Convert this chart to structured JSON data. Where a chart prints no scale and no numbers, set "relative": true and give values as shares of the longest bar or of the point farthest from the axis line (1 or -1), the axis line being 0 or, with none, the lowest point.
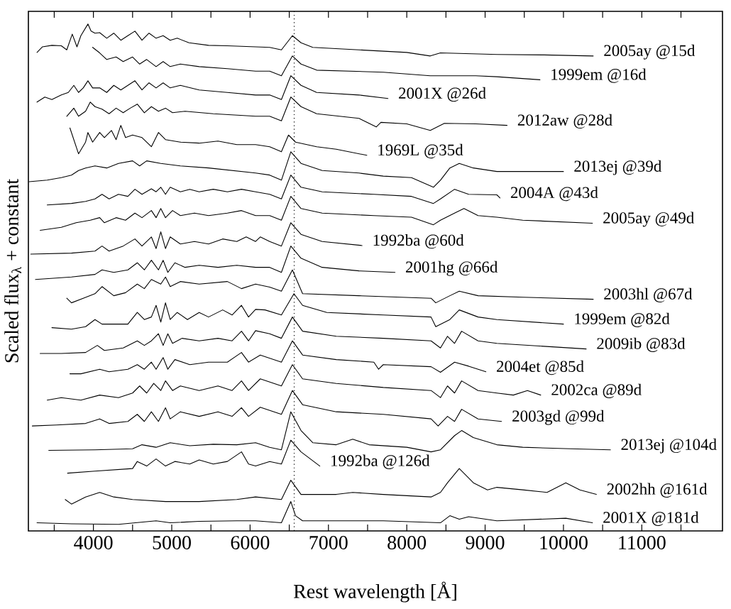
{
  "chart_data": {
    "type": "line",
    "relative": true,
    "xlabel": "Rest wavelength [Å]",
    "ylabel": "Scaled flux$_{λ}$ + constant",
    "xlim": [
      3170,
      12030
    ],
    "xticks": [
      {
        "value": 3500,
        "label": null
      },
      4000,
      {
        "value": 4500,
        "label": null
      },
      5000,
      {
        "value": 5500,
        "label": null
      },
      6000,
      {
        "value": 6500,
        "label": null
      },
      7000,
      {
        "value": 7500,
        "label": null
      },
      8000,
      {
        "value": 8500,
        "label": null
      },
      9000,
      {
        "value": 9500,
        "label": null
      },
      10000,
      {
        "value": 10500,
        "label": null
      },
      11000,
      {
        "value": 11500,
        "label": null
      }
    ],
    "ref_lines": [
      {
        "axis": "x",
        "value": 6563,
        "line_style": "dotted"
      }
    ],
    "series": [
      {
        "name": "2005ay @15d",
        "color": "#000000",
        "x": [
          3280,
          3350,
          3470,
          3590,
          3660,
          3730,
          3790,
          3840,
          3930,
          3970,
          4020,
          4080,
          4170,
          4260,
          4350,
          4440,
          4530,
          4620,
          4710,
          4800,
          4890,
          4980,
          5070,
          5220,
          5470,
          5710,
          6070,
          6250,
          6400,
          6540,
          6650,
          6800,
          7390,
          8000,
          8300,
          8430,
          9150,
          9750,
          10380
        ],
        "values": [
          0.944,
          0.955,
          0.958,
          0.957,
          0.949,
          0.98,
          0.955,
          0.977,
          1.0,
          0.986,
          0.982,
          0.983,
          0.972,
          0.982,
          0.968,
          0.977,
          0.986,
          0.968,
          0.982,
          0.972,
          0.977,
          0.968,
          0.972,
          0.963,
          0.958,
          0.957,
          0.955,
          0.954,
          0.949,
          0.977,
          0.963,
          0.954,
          0.949,
          0.944,
          0.937,
          0.943,
          0.94,
          0.939,
          0.937
        ]
      },
      {
        "name": "1999em @16d",
        "color": "#000000",
        "x": [
          3990,
          4080,
          4170,
          4290,
          4380,
          4500,
          4590,
          4680,
          4800,
          4890,
          4980,
          5110,
          5350,
          5710,
          6070,
          6250,
          6400,
          6540,
          6650,
          6850,
          7700,
          8300,
          8880,
          9150,
          9700
        ],
        "values": [
          0.954,
          0.943,
          0.93,
          0.935,
          0.926,
          0.935,
          0.921,
          0.93,
          0.916,
          0.926,
          0.916,
          0.921,
          0.916,
          0.912,
          0.907,
          0.907,
          0.898,
          0.937,
          0.921,
          0.909,
          0.905,
          0.898,
          0.898,
          0.896,
          0.89
        ]
      },
      {
        "name": "2001X @26d",
        "color": "#000000",
        "x": [
          3280,
          3380,
          3470,
          3590,
          3680,
          3750,
          3810,
          3870,
          3930,
          3990,
          4080,
          4170,
          4260,
          4350,
          4440,
          4530,
          4620,
          4710,
          4800,
          4890,
          4980,
          5110,
          5350,
          5710,
          6070,
          6250,
          6400,
          6520,
          6650,
          6850,
          7390,
          7760
        ],
        "values": [
          0.846,
          0.856,
          0.851,
          0.86,
          0.865,
          0.879,
          0.865,
          0.874,
          0.888,
          0.874,
          0.874,
          0.865,
          0.879,
          0.87,
          0.879,
          0.888,
          0.87,
          0.884,
          0.874,
          0.884,
          0.874,
          0.879,
          0.87,
          0.865,
          0.86,
          0.86,
          0.851,
          0.898,
          0.879,
          0.865,
          0.86,
          0.853
        ]
      },
      {
        "name": "2012aw @28d",
        "color": "#000000",
        "x": [
          3660,
          3750,
          3810,
          3900,
          3960,
          4020,
          4110,
          4200,
          4290,
          4380,
          4470,
          4560,
          4650,
          4740,
          4830,
          4920,
          5010,
          5170,
          5530,
          6070,
          6250,
          6400,
          6520,
          6650,
          6850,
          7390,
          7610,
          7670,
          8000,
          8300,
          8480,
          8880,
          9280
        ],
        "values": [
          0.818,
          0.834,
          0.818,
          0.828,
          0.846,
          0.837,
          0.832,
          0.823,
          0.834,
          0.825,
          0.834,
          0.842,
          0.825,
          0.837,
          0.828,
          0.834,
          0.825,
          0.828,
          0.823,
          0.818,
          0.818,
          0.809,
          0.856,
          0.837,
          0.823,
          0.814,
          0.797,
          0.806,
          0.803,
          0.79,
          0.804,
          0.803,
          0.8
        ]
      },
      {
        "name": "1969L @35d",
        "color": "#000000",
        "x": [
          3700,
          3810,
          3900,
          3930,
          3990,
          4080,
          4140,
          4230,
          4290,
          4350,
          4410,
          4500,
          4620,
          4740,
          4830,
          4920,
          5110,
          5350,
          5590,
          5830,
          6070,
          6250,
          6400,
          6490,
          6580,
          6850,
          7100,
          7490
        ],
        "values": [
          0.795,
          0.744,
          0.767,
          0.786,
          0.767,
          0.786,
          0.776,
          0.79,
          0.772,
          0.8,
          0.776,
          0.781,
          0.776,
          0.758,
          0.786,
          0.772,
          0.767,
          0.765,
          0.769,
          0.762,
          0.762,
          0.758,
          0.748,
          0.781,
          0.767,
          0.758,
          0.753,
          0.741
        ]
      },
      {
        "name": "2013ej @39d",
        "color": "#000000",
        "x": [
          3180,
          3410,
          3590,
          3720,
          3810,
          3900,
          4020,
          4170,
          4320,
          4500,
          4590,
          4680,
          4860,
          5110,
          5470,
          6070,
          6250,
          6400,
          6520,
          6650,
          6920,
          7390,
          7700,
          8060,
          8340,
          8430,
          8550,
          8670,
          8850,
          9150,
          10000
        ],
        "values": [
          0.689,
          0.692,
          0.697,
          0.702,
          0.711,
          0.716,
          0.72,
          0.716,
          0.725,
          0.73,
          0.72,
          0.73,
          0.725,
          0.72,
          0.716,
          0.706,
          0.702,
          0.692,
          0.748,
          0.725,
          0.711,
          0.706,
          0.7,
          0.697,
          0.678,
          0.692,
          0.716,
          0.725,
          0.716,
          0.709,
          0.709
        ]
      },
      {
        "name": "2004A @43d",
        "color": "#000000",
        "x": [
          3410,
          3720,
          3900,
          4020,
          4110,
          4200,
          4320,
          4440,
          4530,
          4620,
          4740,
          4800,
          4860,
          4920,
          4980,
          5110,
          5230,
          5350,
          5530,
          5710,
          5890,
          6070,
          6250,
          6400,
          6520,
          6650,
          6920,
          7580,
          8060,
          8340,
          8430,
          8610,
          8790,
          9150,
          9190
        ],
        "values": [
          0.643,
          0.646,
          0.65,
          0.655,
          0.664,
          0.655,
          0.664,
          0.66,
          0.674,
          0.664,
          0.675,
          0.669,
          0.678,
          0.664,
          0.678,
          0.669,
          0.674,
          0.669,
          0.674,
          0.669,
          0.674,
          0.669,
          0.664,
          0.655,
          0.702,
          0.678,
          0.669,
          0.664,
          0.66,
          0.646,
          0.655,
          0.674,
          0.664,
          0.663,
          0.657
        ]
      },
      {
        "name": "2005ay @49d",
        "color": "#000000",
        "x": [
          3320,
          3590,
          3780,
          3960,
          4080,
          4140,
          4290,
          4410,
          4530,
          4620,
          4740,
          4800,
          4860,
          4920,
          5010,
          5110,
          5290,
          5470,
          5710,
          5890,
          6070,
          6250,
          6400,
          6520,
          6650,
          6920,
          7580,
          8060,
          8340,
          8430,
          8610,
          8730,
          8910,
          9150,
          9480,
          10370
        ],
        "values": [
          0.593,
          0.599,
          0.608,
          0.613,
          0.618,
          0.608,
          0.618,
          0.613,
          0.627,
          0.618,
          0.632,
          0.618,
          0.636,
          0.618,
          0.632,
          0.622,
          0.627,
          0.622,
          0.627,
          0.632,
          0.622,
          0.622,
          0.613,
          0.66,
          0.636,
          0.627,
          0.622,
          0.619,
          0.604,
          0.613,
          0.627,
          0.636,
          0.622,
          0.619,
          0.613,
          0.607
        ]
      },
      {
        "name": "1992ba @60d",
        "color": "#000000",
        "x": [
          3200,
          3720,
          4020,
          4110,
          4200,
          4380,
          4530,
          4620,
          4740,
          4800,
          4860,
          4920,
          4980,
          5110,
          5290,
          5470,
          5650,
          5830,
          5950,
          6070,
          6130,
          6250,
          6400,
          6520,
          6650,
          6920,
          7430
        ],
        "values": [
          0.546,
          0.548,
          0.552,
          0.562,
          0.552,
          0.562,
          0.576,
          0.562,
          0.58,
          0.557,
          0.59,
          0.557,
          0.58,
          0.566,
          0.571,
          0.566,
          0.576,
          0.571,
          0.58,
          0.571,
          0.58,
          0.571,
          0.562,
          0.608,
          0.585,
          0.571,
          0.563
        ]
      },
      {
        "name": "2001hg @66d",
        "color": "#000000",
        "x": [
          3260,
          3720,
          4020,
          4110,
          4260,
          4440,
          4560,
          4650,
          4740,
          4830,
          4890,
          4950,
          5040,
          5170,
          5350,
          5590,
          5830,
          6070,
          6250,
          6400,
          6520,
          6650,
          6920,
          7390,
          7850
        ],
        "values": [
          0.496,
          0.501,
          0.506,
          0.515,
          0.51,
          0.515,
          0.529,
          0.515,
          0.534,
          0.515,
          0.534,
          0.51,
          0.529,
          0.52,
          0.524,
          0.52,
          0.524,
          0.52,
          0.52,
          0.51,
          0.562,
          0.538,
          0.52,
          0.513,
          0.51
        ]
      },
      {
        "name": "2003hl @67d",
        "color": "#000000",
        "x": [
          3660,
          3720,
          3870,
          4020,
          4110,
          4260,
          4410,
          4560,
          4650,
          4740,
          4860,
          4920,
          4980,
          5110,
          5350,
          5710,
          5890,
          6070,
          6250,
          6400,
          6540,
          6670,
          7390,
          8310,
          8370,
          8550,
          8670,
          8910,
          9480,
          10380
        ],
        "values": [
          0.459,
          0.45,
          0.459,
          0.468,
          0.482,
          0.464,
          0.47,
          0.487,
          0.478,
          0.496,
          0.487,
          0.501,
          0.482,
          0.492,
          0.487,
          0.492,
          0.478,
          0.487,
          0.481,
          0.473,
          0.515,
          0.468,
          0.464,
          0.459,
          0.45,
          0.464,
          0.473,
          0.464,
          0.461,
          0.457
        ]
      },
      {
        "name": "1999em @82d",
        "color": "#000000",
        "x": [
          3470,
          3720,
          3900,
          4020,
          4110,
          4440,
          4560,
          4650,
          4740,
          4800,
          4860,
          4920,
          4980,
          5070,
          5200,
          5350,
          5470,
          5650,
          5770,
          5890,
          5980,
          6070,
          6190,
          6400,
          6560,
          6670,
          6980,
          7700,
          8310,
          8370,
          8550,
          8670,
          8910,
          9150,
          10000
        ],
        "values": [
          0.401,
          0.398,
          0.403,
          0.417,
          0.408,
          0.408,
          0.431,
          0.417,
          0.422,
          0.445,
          0.412,
          0.45,
          0.417,
          0.431,
          0.417,
          0.431,
          0.422,
          0.436,
          0.426,
          0.445,
          0.422,
          0.437,
          0.436,
          0.426,
          0.468,
          0.445,
          0.431,
          0.426,
          0.422,
          0.403,
          0.417,
          0.436,
          0.422,
          0.417,
          0.408
        ]
      },
      {
        "name": "2009ib @83d",
        "color": "#000000",
        "x": [
          3320,
          3590,
          3900,
          4050,
          4140,
          4380,
          4560,
          4650,
          4740,
          4830,
          4890,
          4950,
          5010,
          5130,
          5350,
          5590,
          5770,
          5890,
          5980,
          6070,
          6250,
          6400,
          6540,
          6670,
          7100,
          7700,
          8310,
          8430,
          8520,
          8610,
          8700,
          8910,
          9150,
          10290
        ],
        "values": [
          0.35,
          0.35,
          0.352,
          0.366,
          0.356,
          0.361,
          0.375,
          0.366,
          0.375,
          0.389,
          0.366,
          0.389,
          0.37,
          0.38,
          0.375,
          0.38,
          0.375,
          0.394,
          0.375,
          0.395,
          0.389,
          0.38,
          0.422,
          0.394,
          0.384,
          0.38,
          0.375,
          0.361,
          0.384,
          0.37,
          0.394,
          0.375,
          0.37,
          0.359
        ]
      },
      {
        "name": "2004et @85d",
        "color": "#000000",
        "x": [
          3700,
          3840,
          4080,
          4200,
          4440,
          4560,
          4650,
          4740,
          4800,
          4890,
          4950,
          5040,
          5230,
          5470,
          5710,
          5890,
          5980,
          6130,
          6400,
          6540,
          6670,
          7100,
          7580,
          7640,
          7700,
          8310,
          8430,
          8610,
          8790,
          9010
        ],
        "values": [
          0.31,
          0.31,
          0.319,
          0.314,
          0.319,
          0.328,
          0.319,
          0.333,
          0.319,
          0.342,
          0.319,
          0.338,
          0.328,
          0.333,
          0.333,
          0.352,
          0.333,
          0.347,
          0.333,
          0.375,
          0.347,
          0.338,
          0.333,
          0.319,
          0.328,
          0.324,
          0.313,
          0.333,
          0.325,
          0.314
        ]
      },
      {
        "name": "2002ca @89d",
        "color": "#000000",
        "x": [
          3410,
          3590,
          3840,
          4080,
          4320,
          4500,
          4590,
          4680,
          4770,
          4860,
          4920,
          5010,
          5110,
          5350,
          5590,
          5770,
          5890,
          5980,
          6130,
          6400,
          6540,
          6670,
          7100,
          7700,
          8310,
          8430,
          8520,
          8610,
          8700,
          8910,
          9150,
          9360,
          9540,
          9710
        ],
        "values": [
          0.258,
          0.263,
          0.258,
          0.268,
          0.263,
          0.272,
          0.286,
          0.272,
          0.291,
          0.277,
          0.296,
          0.277,
          0.286,
          0.277,
          0.286,
          0.277,
          0.296,
          0.277,
          0.3,
          0.286,
          0.328,
          0.3,
          0.291,
          0.283,
          0.277,
          0.263,
          0.286,
          0.272,
          0.296,
          0.277,
          0.272,
          0.268,
          0.277,
          0.268
        ]
      },
      {
        "name": "2003gd @99d",
        "color": "#000000",
        "x": [
          3220,
          3530,
          3900,
          4080,
          4200,
          4440,
          4560,
          4650,
          4740,
          4830,
          4920,
          4980,
          5110,
          5350,
          5590,
          5770,
          5890,
          5980,
          6130,
          6400,
          6540,
          6670,
          7100,
          7700,
          8310,
          8400,
          8520,
          8610,
          8700,
          8910,
          9210
        ],
        "values": [
          0.207,
          0.209,
          0.212,
          0.221,
          0.212,
          0.216,
          0.23,
          0.216,
          0.235,
          0.216,
          0.243,
          0.221,
          0.235,
          0.226,
          0.235,
          0.226,
          0.243,
          0.226,
          0.244,
          0.23,
          0.277,
          0.249,
          0.235,
          0.23,
          0.221,
          0.207,
          0.226,
          0.216,
          0.24,
          0.221,
          0.216
        ]
      },
      {
        "name": "2013ej @104d",
        "color": "#000000",
        "x": [
          3430,
          4020,
          4500,
          4620,
          4800,
          4980,
          5230,
          5530,
          5830,
          6070,
          6250,
          6400,
          6520,
          6650,
          6800,
          7100,
          7310,
          7520,
          8000,
          8310,
          8430,
          8610,
          8700,
          8850,
          9150,
          9480,
          10090,
          10600
        ],
        "values": [
          0.159,
          0.16,
          0.162,
          0.17,
          0.165,
          0.174,
          0.168,
          0.171,
          0.17,
          0.174,
          0.165,
          0.16,
          0.235,
          0.198,
          0.174,
          0.17,
          0.181,
          0.17,
          0.165,
          0.156,
          0.16,
          0.188,
          0.198,
          0.184,
          0.17,
          0.165,
          0.162,
          0.16
        ]
      },
      {
        "name": "1992ba @126d",
        "color": "#000000",
        "x": [
          3670,
          4020,
          4500,
          4560,
          4680,
          4800,
          4920,
          5040,
          5230,
          5350,
          5530,
          5710,
          5890,
          5980,
          6070,
          6250,
          6400,
          6520,
          6650,
          6890
        ],
        "values": [
          0.114,
          0.118,
          0.123,
          0.137,
          0.128,
          0.142,
          0.128,
          0.137,
          0.132,
          0.14,
          0.132,
          0.137,
          0.156,
          0.132,
          0.128,
          0.137,
          0.132,
          0.179,
          0.156,
          0.128
        ]
      },
      {
        "name": "2002hh @161d",
        "color": "#000000",
        "x": [
          3640,
          3720,
          3900,
          4080,
          4260,
          4500,
          4920,
          5350,
          5830,
          6070,
          6400,
          6520,
          6650,
          7100,
          7310,
          7700,
          8310,
          8430,
          8520,
          8670,
          8850,
          9030,
          9150,
          9480,
          9790,
          10030,
          10210,
          10420
        ],
        "values": [
          0.062,
          0.053,
          0.067,
          0.076,
          0.067,
          0.062,
          0.058,
          0.058,
          0.062,
          0.067,
          0.062,
          0.1,
          0.072,
          0.072,
          0.076,
          0.072,
          0.067,
          0.076,
          0.095,
          0.123,
          0.095,
          0.081,
          0.086,
          0.081,
          0.076,
          0.095,
          0.081,
          0.072
        ]
      },
      {
        "name": "2001X @181d",
        "color": "#000000",
        "x": [
          3280,
          3720,
          4320,
          4800,
          4980,
          5350,
          5830,
          6070,
          6400,
          6520,
          6580,
          6670,
          7700,
          8430,
          8550,
          8670,
          8790,
          9150,
          10030,
          10370
        ],
        "values": [
          0.016,
          0.014,
          0.013,
          0.02,
          0.016,
          0.019,
          0.02,
          0.02,
          0.016,
          0.058,
          0.03,
          0.02,
          0.02,
          0.016,
          0.03,
          0.023,
          0.028,
          0.02,
          0.025,
          0.016
        ]
      }
    ]
  }
}
